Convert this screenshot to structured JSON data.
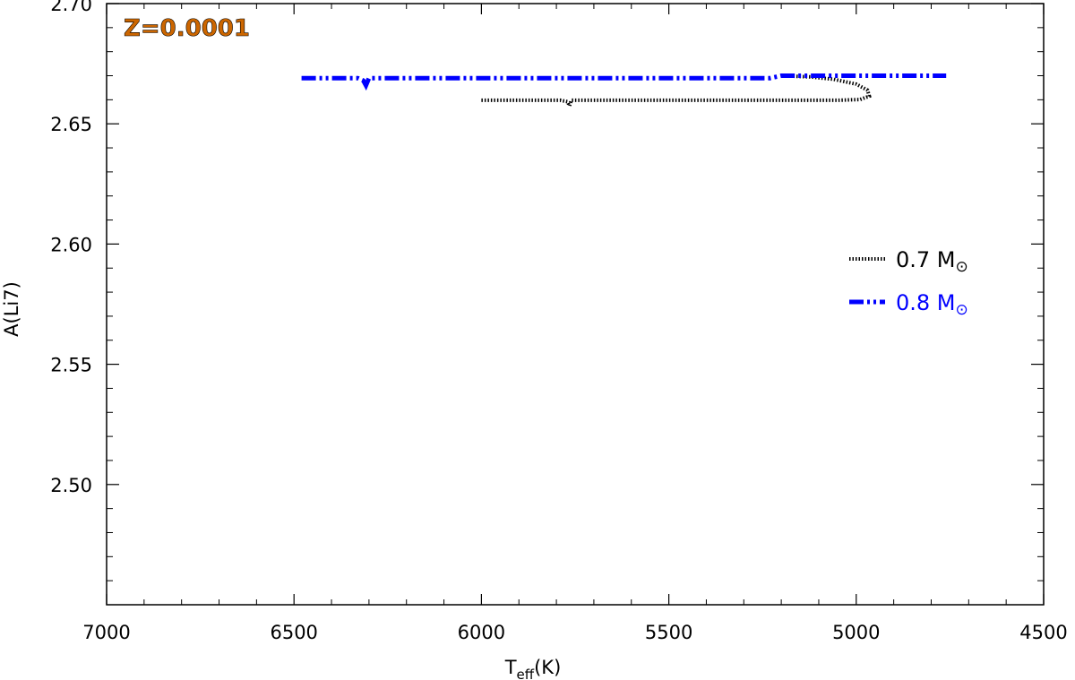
{
  "chart_data": {
    "type": "line",
    "xlabel": "T",
    "xlabel_sub": "eff",
    "xlabel_unit": "(K)",
    "ylabel": "A(Li7)",
    "xlim": [
      7000,
      4500
    ],
    "ylim": [
      2.45,
      2.7
    ],
    "x_ticks": [
      7000,
      6500,
      6000,
      5500,
      5000,
      4500
    ],
    "x_tick_labels": [
      "7000",
      "6500",
      "6000",
      "5500",
      "5000",
      "4500"
    ],
    "y_ticks": [
      2.5,
      2.55,
      2.6,
      2.65,
      2.7
    ],
    "y_tick_labels": [
      "2.50",
      "2.55",
      "2.60",
      "2.65",
      "2.70"
    ],
    "annotation": {
      "text": "Z=0.0001",
      "color": "#cc6600"
    },
    "legend_position": "right",
    "series": [
      {
        "name": "0.7 M",
        "legend_symbol": "⊙",
        "color": "#000000",
        "style": "dotted",
        "points": [
          [
            6000,
            2.6598
          ],
          [
            5900,
            2.6598
          ],
          [
            5790,
            2.6598
          ],
          [
            5770,
            2.6592
          ],
          [
            5765,
            2.6575
          ],
          [
            5760,
            2.6598
          ],
          [
            5600,
            2.6598
          ],
          [
            5400,
            2.6598
          ],
          [
            5200,
            2.6598
          ],
          [
            5050,
            2.6598
          ],
          [
            4990,
            2.6601
          ],
          [
            4965,
            2.6615
          ],
          [
            4970,
            2.664
          ],
          [
            5000,
            2.6665
          ],
          [
            5060,
            2.6685
          ],
          [
            5120,
            2.6695
          ],
          [
            5200,
            2.67
          ]
        ]
      },
      {
        "name": "0.8 M",
        "legend_symbol": "⊙",
        "color": "#0000ff",
        "style": "dash-dot-dot",
        "points": [
          [
            6480,
            2.669
          ],
          [
            6400,
            2.669
          ],
          [
            6330,
            2.669
          ],
          [
            6315,
            2.668
          ],
          [
            6308,
            2.666
          ],
          [
            6300,
            2.669
          ],
          [
            6100,
            2.669
          ],
          [
            5800,
            2.669
          ],
          [
            5500,
            2.669
          ],
          [
            5230,
            2.669
          ],
          [
            5200,
            2.67
          ],
          [
            5000,
            2.67
          ],
          [
            4760,
            2.67
          ]
        ]
      }
    ]
  }
}
